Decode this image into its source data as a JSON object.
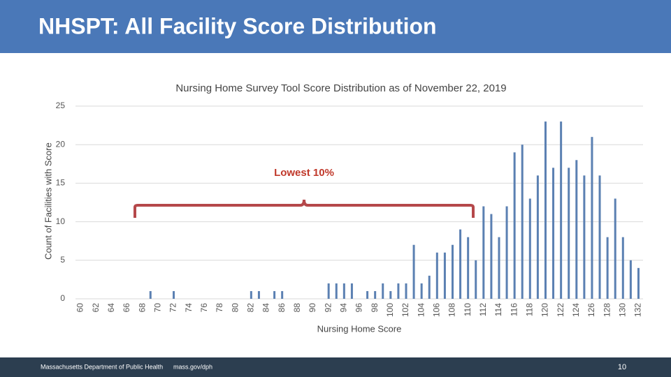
{
  "header": {
    "title": "NHSPT: All Facility Score Distribution"
  },
  "chart_data": {
    "type": "bar",
    "title": "Nursing Home Survey Tool Score Distribution as of November 22, 2019",
    "xlabel": "Nursing Home Score",
    "ylabel": "Count of Facilities with Score",
    "annotation": "Lowest 10%",
    "color": "#5b80b2",
    "grid": true,
    "ylim": [
      0,
      25
    ],
    "yticks": [
      0,
      5,
      10,
      15,
      20,
      25
    ],
    "categories": [
      60,
      null,
      62,
      null,
      64,
      null,
      66,
      null,
      68,
      null,
      70,
      null,
      72,
      null,
      74,
      null,
      76,
      null,
      78,
      null,
      80,
      null,
      82,
      null,
      84,
      null,
      86,
      null,
      88,
      null,
      90,
      null,
      92,
      null,
      94,
      null,
      96,
      null,
      98,
      null,
      100,
      null,
      102,
      null,
      104,
      null,
      106,
      null,
      108,
      null,
      110,
      null,
      112,
      null,
      114,
      null,
      116,
      null,
      118,
      null,
      120,
      null,
      122,
      null,
      124,
      null,
      126,
      null,
      128,
      null,
      130,
      null,
      132
    ],
    "values": [
      0,
      0,
      0,
      0,
      0,
      0,
      0,
      0,
      0,
      1,
      0,
      0,
      1,
      0,
      0,
      0,
      0,
      0,
      0,
      0,
      0,
      0,
      1,
      1,
      0,
      1,
      1,
      0,
      0,
      0,
      0,
      0,
      2,
      2,
      2,
      2,
      0,
      1,
      1,
      2,
      1,
      2,
      2,
      7,
      2,
      3,
      6,
      6,
      7,
      9,
      8,
      5,
      12,
      11,
      8,
      12,
      19,
      20,
      13,
      16,
      23,
      17,
      23,
      17,
      18,
      16,
      21,
      16,
      8,
      13,
      8,
      5,
      4
    ]
  },
  "footer": {
    "org": "Massachusetts Department of Public Health",
    "url": "mass.gov/dph",
    "page": "10"
  }
}
